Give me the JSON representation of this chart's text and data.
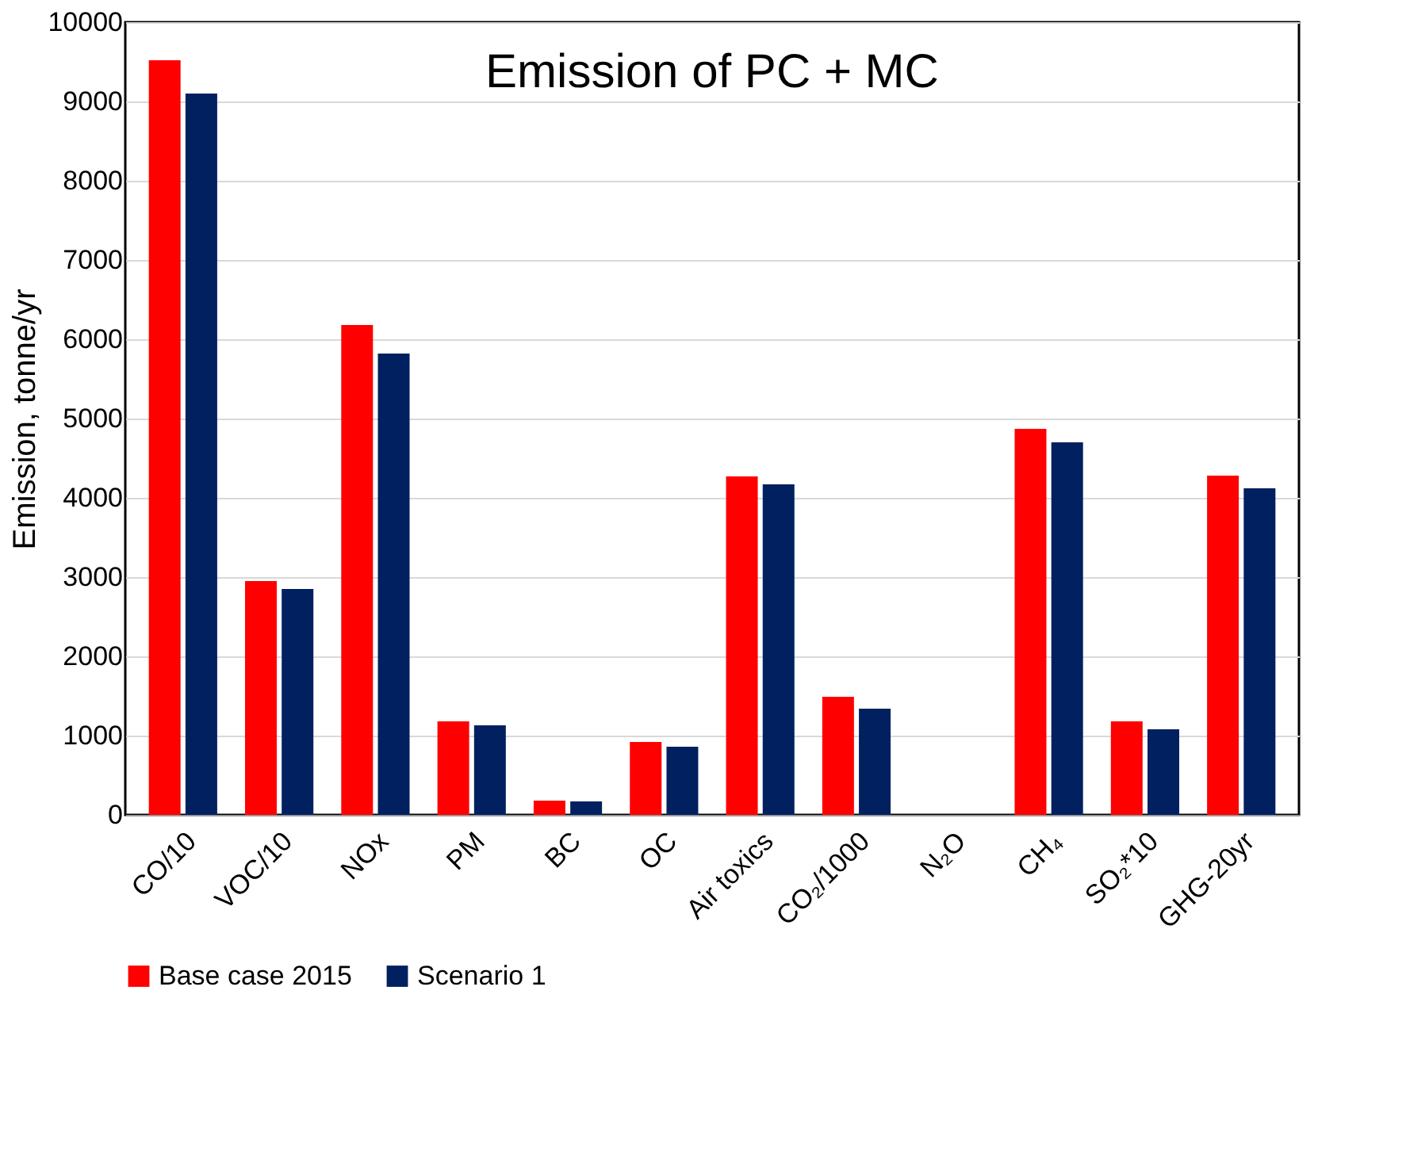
{
  "chart_data": {
    "type": "bar",
    "title": "Emission of PC + MC",
    "ylabel": "Emission, tonne/yr",
    "categories": [
      "CO/10",
      "VOC/10",
      "NOx",
      "PM",
      "BC",
      "OC",
      "Air toxics",
      "CO₂/1000",
      "N₂O",
      "CH₄",
      "SO₂*10",
      "GHG-20yr"
    ],
    "series": [
      {
        "name": "Base case 2015",
        "color": "#ff0000",
        "values": [
          9520,
          2950,
          6180,
          1180,
          180,
          920,
          4270,
          1490,
          0,
          4870,
          1180,
          4280
        ]
      },
      {
        "name": "Scenario 1",
        "color": "#002060",
        "values": [
          9100,
          2850,
          5820,
          1130,
          170,
          860,
          4170,
          1340,
          0,
          4700,
          1080,
          4120
        ]
      }
    ],
    "ylim": [
      0,
      10000
    ],
    "yticks": [
      0,
      1000,
      2000,
      3000,
      4000,
      5000,
      6000,
      7000,
      8000,
      9000,
      10000
    ],
    "grid": "y",
    "legend": "bottom"
  }
}
